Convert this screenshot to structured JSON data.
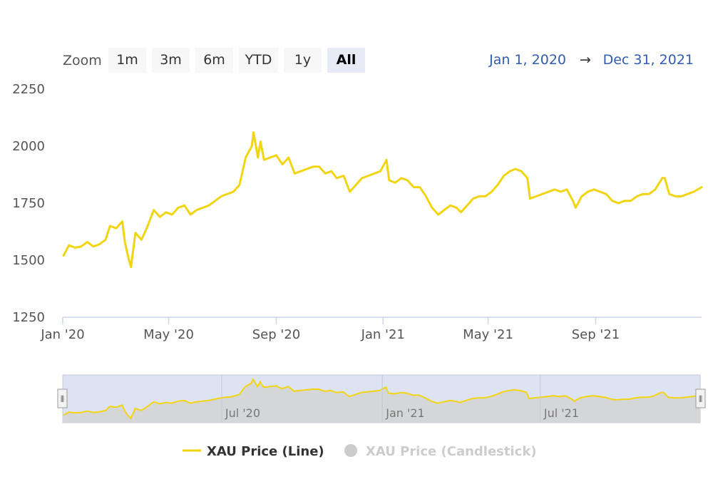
{
  "range_selector": {
    "zoom_label": "Zoom",
    "buttons": [
      "1m",
      "3m",
      "6m",
      "YTD",
      "1y",
      "All"
    ],
    "selected": "All",
    "from_date": "Jan 1, 2020",
    "arrow": "→",
    "to_date": "Dec 31, 2021"
  },
  "navigator": {
    "tick_labels": [
      "Jul '20",
      "Jan '21",
      "Jul '21"
    ],
    "tick_dates": [
      "2020-07-01",
      "2021-01-01",
      "2021-07-01"
    ],
    "handle_glyph": "⦀"
  },
  "legend": {
    "items": [
      {
        "label": "XAU Price (Line)",
        "active": true
      },
      {
        "label": "XAU Price (Candlestick)",
        "active": false
      }
    ]
  },
  "colors": {
    "series": "#f2d512",
    "axis_label": "#555555",
    "axis_line": "#ccd6eb",
    "button_bg": "#f7f7f7",
    "button_selected_bg": "#e6ebf5",
    "date_text": "#335cad",
    "navigator_mask": "#dde3f2",
    "navigator_fill": "#d4d4d4",
    "legend_inactive": "#cccccc"
  },
  "chart_data": {
    "type": "line",
    "title": "",
    "xlabel": "",
    "ylabel": "",
    "ylim": [
      1250,
      2250
    ],
    "yticks": [
      1250,
      1500,
      1750,
      2000,
      2250
    ],
    "xlim": [
      "2020-01-01",
      "2021-12-31"
    ],
    "xtick_labels": [
      "Jan '20",
      "May '20",
      "Sep '20",
      "Jan '21",
      "May '21",
      "Sep '21"
    ],
    "xtick_dates": [
      "2020-01-01",
      "2020-05-01",
      "2020-09-01",
      "2021-01-01",
      "2021-05-01",
      "2021-09-01"
    ],
    "series": [
      {
        "name": "XAU Price (Line)",
        "x": [
          "2020-01-02",
          "2020-01-08",
          "2020-01-15",
          "2020-01-22",
          "2020-01-29",
          "2020-02-05",
          "2020-02-12",
          "2020-02-19",
          "2020-02-24",
          "2020-03-02",
          "2020-03-09",
          "2020-03-12",
          "2020-03-16",
          "2020-03-19",
          "2020-03-24",
          "2020-03-31",
          "2020-04-07",
          "2020-04-14",
          "2020-04-21",
          "2020-04-28",
          "2020-05-05",
          "2020-05-12",
          "2020-05-19",
          "2020-05-26",
          "2020-06-02",
          "2020-06-09",
          "2020-06-16",
          "2020-06-23",
          "2020-06-30",
          "2020-07-07",
          "2020-07-14",
          "2020-07-21",
          "2020-07-28",
          "2020-08-04",
          "2020-08-06",
          "2020-08-11",
          "2020-08-14",
          "2020-08-18",
          "2020-08-25",
          "2020-09-01",
          "2020-09-08",
          "2020-09-15",
          "2020-09-22",
          "2020-09-29",
          "2020-10-06",
          "2020-10-13",
          "2020-10-20",
          "2020-10-27",
          "2020-11-03",
          "2020-11-09",
          "2020-11-17",
          "2020-11-24",
          "2020-12-01",
          "2020-12-08",
          "2020-12-15",
          "2020-12-22",
          "2020-12-29",
          "2021-01-05",
          "2021-01-08",
          "2021-01-15",
          "2021-01-22",
          "2021-01-29",
          "2021-02-05",
          "2021-02-12",
          "2021-02-19",
          "2021-02-26",
          "2021-03-05",
          "2021-03-12",
          "2021-03-19",
          "2021-03-26",
          "2021-03-31",
          "2021-04-07",
          "2021-04-14",
          "2021-04-21",
          "2021-04-28",
          "2021-05-05",
          "2021-05-12",
          "2021-05-19",
          "2021-05-26",
          "2021-06-01",
          "2021-06-08",
          "2021-06-15",
          "2021-06-18",
          "2021-06-25",
          "2021-07-02",
          "2021-07-09",
          "2021-07-16",
          "2021-07-23",
          "2021-07-30",
          "2021-08-06",
          "2021-08-09",
          "2021-08-16",
          "2021-08-23",
          "2021-08-30",
          "2021-09-06",
          "2021-09-13",
          "2021-09-20",
          "2021-09-27",
          "2021-10-04",
          "2021-10-11",
          "2021-10-18",
          "2021-10-25",
          "2021-11-01",
          "2021-11-08",
          "2021-11-16",
          "2021-11-19",
          "2021-11-24",
          "2021-12-01",
          "2021-12-08",
          "2021-12-15",
          "2021-12-22",
          "2021-12-31"
        ],
        "y": [
          1520,
          1565,
          1555,
          1560,
          1580,
          1560,
          1570,
          1590,
          1650,
          1640,
          1670,
          1580,
          1510,
          1470,
          1620,
          1590,
          1650,
          1720,
          1690,
          1710,
          1700,
          1730,
          1740,
          1700,
          1720,
          1730,
          1740,
          1760,
          1780,
          1790,
          1800,
          1830,
          1950,
          2000,
          2060,
          1950,
          2020,
          1940,
          1950,
          1960,
          1920,
          1950,
          1880,
          1890,
          1900,
          1910,
          1910,
          1880,
          1890,
          1860,
          1870,
          1800,
          1830,
          1860,
          1870,
          1880,
          1890,
          1940,
          1850,
          1840,
          1860,
          1850,
          1820,
          1820,
          1780,
          1730,
          1700,
          1720,
          1740,
          1730,
          1710,
          1740,
          1770,
          1780,
          1780,
          1800,
          1830,
          1870,
          1890,
          1900,
          1890,
          1860,
          1770,
          1780,
          1790,
          1800,
          1810,
          1800,
          1810,
          1760,
          1730,
          1780,
          1800,
          1810,
          1800,
          1790,
          1760,
          1750,
          1760,
          1760,
          1780,
          1790,
          1790,
          1810,
          1860,
          1860,
          1790,
          1780,
          1780,
          1790,
          1800,
          1820
        ]
      }
    ]
  }
}
